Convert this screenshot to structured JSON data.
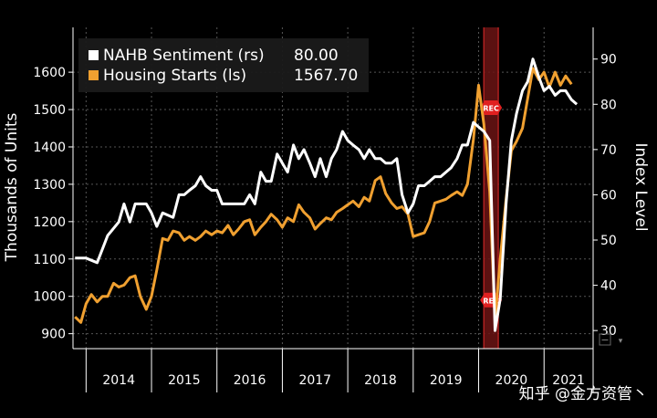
{
  "chart_data": {
    "type": "line",
    "title": "",
    "ylabel_left": "Thousands of Units",
    "ylabel_right": "Index Level",
    "ylim_left": [
      860,
      1720
    ],
    "ylim_right": [
      26,
      97
    ],
    "yticks_left": [
      900,
      1000,
      1100,
      1200,
      1300,
      1400,
      1500,
      1600
    ],
    "yticks_right": [
      30,
      40,
      50,
      60,
      70,
      80,
      90
    ],
    "xlim": [
      2013.8,
      2021.75
    ],
    "year_labels": [
      "2014",
      "2015",
      "2016",
      "2017",
      "2018",
      "2019",
      "2020",
      "2021"
    ],
    "year_starts": [
      2014,
      2015,
      2016,
      2017,
      2018,
      2019,
      2020,
      2021,
      2021.75
    ],
    "grid": true,
    "legend_position": "top-left",
    "recession_band": {
      "start": 2020.08,
      "end": 2020.3,
      "label": "REC",
      "label_values_left": [
        1505,
        990
      ]
    },
    "series": [
      {
        "name": "NAHB Sentiment (rs)",
        "last_value": "80.00",
        "axis": "right",
        "color": "#ffffff",
        "points": [
          [
            2013.83,
            46
          ],
          [
            2014.0,
            46
          ],
          [
            2014.17,
            45
          ],
          [
            2014.33,
            51
          ],
          [
            2014.5,
            54
          ],
          [
            2014.58,
            58
          ],
          [
            2014.67,
            54
          ],
          [
            2014.75,
            58
          ],
          [
            2014.92,
            58
          ],
          [
            2015.0,
            56
          ],
          [
            2015.08,
            53
          ],
          [
            2015.17,
            56
          ],
          [
            2015.33,
            55
          ],
          [
            2015.42,
            60
          ],
          [
            2015.5,
            60
          ],
          [
            2015.58,
            61
          ],
          [
            2015.67,
            62
          ],
          [
            2015.75,
            64
          ],
          [
            2015.83,
            62
          ],
          [
            2015.92,
            61
          ],
          [
            2016.0,
            61
          ],
          [
            2016.08,
            58
          ],
          [
            2016.17,
            58
          ],
          [
            2016.33,
            58
          ],
          [
            2016.42,
            58
          ],
          [
            2016.5,
            60
          ],
          [
            2016.58,
            58
          ],
          [
            2016.67,
            65
          ],
          [
            2016.75,
            63
          ],
          [
            2016.83,
            63
          ],
          [
            2016.92,
            69
          ],
          [
            2017.0,
            67
          ],
          [
            2017.08,
            65
          ],
          [
            2017.17,
            71
          ],
          [
            2017.25,
            68
          ],
          [
            2017.33,
            70
          ],
          [
            2017.42,
            67
          ],
          [
            2017.5,
            64
          ],
          [
            2017.58,
            68
          ],
          [
            2017.67,
            64
          ],
          [
            2017.75,
            68
          ],
          [
            2017.83,
            70
          ],
          [
            2017.92,
            74
          ],
          [
            2018.0,
            72
          ],
          [
            2018.08,
            71
          ],
          [
            2018.17,
            70
          ],
          [
            2018.25,
            68
          ],
          [
            2018.33,
            70
          ],
          [
            2018.42,
            68
          ],
          [
            2018.5,
            68
          ],
          [
            2018.58,
            67
          ],
          [
            2018.67,
            67
          ],
          [
            2018.75,
            68
          ],
          [
            2018.83,
            60
          ],
          [
            2018.92,
            56
          ],
          [
            2019.0,
            58
          ],
          [
            2019.08,
            62
          ],
          [
            2019.17,
            62
          ],
          [
            2019.25,
            63
          ],
          [
            2019.33,
            64
          ],
          [
            2019.42,
            64
          ],
          [
            2019.5,
            65
          ],
          [
            2019.58,
            66
          ],
          [
            2019.67,
            68
          ],
          [
            2019.75,
            71
          ],
          [
            2019.83,
            71
          ],
          [
            2019.92,
            76
          ],
          [
            2020.0,
            75
          ],
          [
            2020.08,
            74
          ],
          [
            2020.17,
            72
          ],
          [
            2020.25,
            30
          ],
          [
            2020.33,
            37
          ],
          [
            2020.42,
            58
          ],
          [
            2020.5,
            72
          ],
          [
            2020.58,
            78
          ],
          [
            2020.67,
            83
          ],
          [
            2020.75,
            85
          ],
          [
            2020.83,
            90
          ],
          [
            2020.92,
            86
          ],
          [
            2021.0,
            83
          ],
          [
            2021.08,
            84
          ],
          [
            2021.17,
            82
          ],
          [
            2021.25,
            83
          ],
          [
            2021.33,
            83
          ],
          [
            2021.42,
            81
          ],
          [
            2021.5,
            80
          ]
        ]
      },
      {
        "name": "Housing Starts (ls)",
        "last_value": "1567.70",
        "axis": "left",
        "color": "#f0a030",
        "points": [
          [
            2013.83,
            945
          ],
          [
            2013.92,
            930
          ],
          [
            2014.0,
            980
          ],
          [
            2014.08,
            1005
          ],
          [
            2014.17,
            985
          ],
          [
            2014.25,
            1000
          ],
          [
            2014.33,
            1000
          ],
          [
            2014.42,
            1035
          ],
          [
            2014.5,
            1025
          ],
          [
            2014.58,
            1030
          ],
          [
            2014.67,
            1050
          ],
          [
            2014.75,
            1055
          ],
          [
            2014.83,
            1000
          ],
          [
            2014.92,
            965
          ],
          [
            2015.0,
            1000
          ],
          [
            2015.08,
            1070
          ],
          [
            2015.17,
            1155
          ],
          [
            2015.25,
            1150
          ],
          [
            2015.33,
            1175
          ],
          [
            2015.42,
            1170
          ],
          [
            2015.5,
            1150
          ],
          [
            2015.58,
            1160
          ],
          [
            2015.67,
            1150
          ],
          [
            2015.75,
            1160
          ],
          [
            2015.83,
            1175
          ],
          [
            2015.92,
            1165
          ],
          [
            2016.0,
            1175
          ],
          [
            2016.08,
            1170
          ],
          [
            2016.17,
            1190
          ],
          [
            2016.25,
            1165
          ],
          [
            2016.33,
            1180
          ],
          [
            2016.42,
            1200
          ],
          [
            2016.5,
            1205
          ],
          [
            2016.58,
            1165
          ],
          [
            2016.67,
            1185
          ],
          [
            2016.75,
            1200
          ],
          [
            2016.83,
            1220
          ],
          [
            2016.92,
            1205
          ],
          [
            2017.0,
            1185
          ],
          [
            2017.08,
            1210
          ],
          [
            2017.17,
            1200
          ],
          [
            2017.25,
            1245
          ],
          [
            2017.33,
            1225
          ],
          [
            2017.42,
            1210
          ],
          [
            2017.5,
            1180
          ],
          [
            2017.58,
            1195
          ],
          [
            2017.67,
            1210
          ],
          [
            2017.75,
            1205
          ],
          [
            2017.83,
            1225
          ],
          [
            2017.92,
            1235
          ],
          [
            2018.0,
            1245
          ],
          [
            2018.08,
            1255
          ],
          [
            2018.17,
            1240
          ],
          [
            2018.25,
            1265
          ],
          [
            2018.33,
            1255
          ],
          [
            2018.42,
            1310
          ],
          [
            2018.5,
            1320
          ],
          [
            2018.58,
            1275
          ],
          [
            2018.67,
            1250
          ],
          [
            2018.75,
            1235
          ],
          [
            2018.83,
            1240
          ],
          [
            2018.92,
            1220
          ],
          [
            2019.0,
            1160
          ],
          [
            2019.08,
            1165
          ],
          [
            2019.17,
            1170
          ],
          [
            2019.25,
            1200
          ],
          [
            2019.33,
            1250
          ],
          [
            2019.42,
            1255
          ],
          [
            2019.5,
            1260
          ],
          [
            2019.58,
            1270
          ],
          [
            2019.67,
            1280
          ],
          [
            2019.75,
            1270
          ],
          [
            2019.83,
            1300
          ],
          [
            2019.92,
            1420
          ],
          [
            2020.0,
            1565
          ],
          [
            2020.08,
            1460
          ],
          [
            2020.17,
            1280
          ],
          [
            2020.25,
            935
          ],
          [
            2020.33,
            1100
          ],
          [
            2020.42,
            1260
          ],
          [
            2020.5,
            1390
          ],
          [
            2020.58,
            1415
          ],
          [
            2020.67,
            1450
          ],
          [
            2020.75,
            1530
          ],
          [
            2020.83,
            1610
          ],
          [
            2020.92,
            1580
          ],
          [
            2021.0,
            1600
          ],
          [
            2021.08,
            1560
          ],
          [
            2021.17,
            1600
          ],
          [
            2021.25,
            1565
          ],
          [
            2021.33,
            1590
          ],
          [
            2021.42,
            1568
          ]
        ]
      }
    ]
  },
  "watermark": "知乎 @金方资管丶"
}
